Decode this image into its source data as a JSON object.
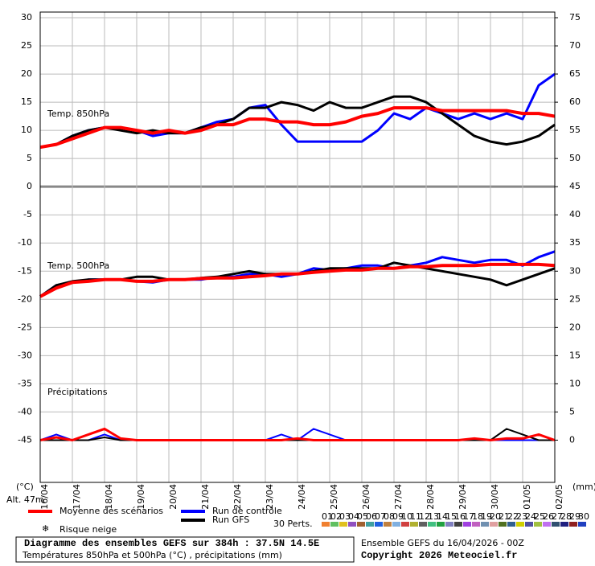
{
  "chart_data": {
    "type": "line",
    "title": "Diagramme des ensembles GEFS sur 384h : 37.5N 14.5E",
    "subtitle": "Températures 850hPa et 500hPa (°C) , précipitations (mm)",
    "source": "Ensemble GEFS du 16/04/2026 - 00Z",
    "copyright": "Copyright 2026 Meteociel.fr",
    "ylabel": "(°C)",
    "y2label": "(mm)",
    "panel_labels": [
      "Temp. 850hPa",
      "Temp. 500hPa",
      "Précipitations"
    ],
    "altitude": "Alt. 47m",
    "snow_label": "Risque neige",
    "categories": [
      "16/04",
      null,
      "17/04",
      null,
      "18/04",
      null,
      "19/04",
      null,
      "20/04",
      null,
      "21/04",
      null,
      "22/04",
      null,
      "23/04",
      null,
      "24/04",
      null,
      "25/04",
      null,
      "26/04",
      null,
      "27/04",
      null,
      "28/04",
      null,
      "29/04",
      null,
      "30/04",
      null,
      "01/05",
      null,
      "02/05"
    ],
    "ylim": [
      -52.5,
      31
    ],
    "yticks": [
      30,
      25,
      20,
      15,
      10,
      5,
      0,
      -5,
      -10,
      -15,
      -20,
      -25,
      -30,
      -35,
      -40,
      -45
    ],
    "y2lim": [
      -7.5,
      76
    ],
    "y2ticks": [
      75,
      70,
      65,
      60,
      55,
      50,
      45,
      40,
      35,
      30,
      25,
      20,
      15,
      10,
      5,
      0
    ],
    "grid": true,
    "series": [
      {
        "name": "Moyenne des scénarios",
        "color": "#ff0000",
        "values": [
          7,
          7.5,
          8.5,
          9.5,
          10.5,
          10.5,
          10,
          9.5,
          10,
          9.5,
          10,
          11,
          11,
          12,
          12,
          11.5,
          11.5,
          11,
          11,
          11.5,
          12.5,
          13,
          14,
          14,
          14,
          13.5,
          13.5,
          13.5,
          13.5,
          13.5,
          13,
          13,
          12.5
        ],
        "values_500": [
          -19.5,
          -18,
          -17,
          -16.8,
          -16.5,
          -16.5,
          -16.8,
          -16.8,
          -16.5,
          -16.5,
          -16.3,
          -16.2,
          -16.2,
          -16,
          -15.8,
          -15.5,
          -15.5,
          -15.2,
          -15,
          -14.8,
          -14.8,
          -14.5,
          -14.5,
          -14.2,
          -14.2,
          -14,
          -14,
          -14,
          -13.8,
          -13.8,
          -13.8,
          -13.8,
          -14
        ],
        "precip": [
          0,
          0.5,
          0,
          1,
          2,
          0.3,
          0,
          0,
          0,
          0,
          0,
          0,
          0,
          0,
          0,
          0,
          0.3,
          0,
          0,
          0,
          0,
          0,
          0,
          0,
          0,
          0,
          0,
          0.3,
          0,
          0.3,
          0.3,
          1,
          0
        ]
      },
      {
        "name": "Run de contrôle",
        "color": "#0000ff",
        "values": [
          7,
          7.5,
          9,
          10,
          10.5,
          10.5,
          10,
          9,
          9.5,
          9.5,
          10.5,
          11.5,
          12,
          14,
          14.5,
          11,
          8,
          8,
          8,
          8,
          8,
          10,
          13,
          12,
          14,
          13,
          12,
          13,
          12,
          13,
          12,
          18,
          20
        ],
        "values_500": [
          -19.5,
          -17.5,
          -17,
          -16.5,
          -16.5,
          -16.5,
          -16.8,
          -17,
          -16.5,
          -16.5,
          -16.5,
          -16,
          -16,
          -15.5,
          -15.5,
          -16,
          -15.5,
          -14.5,
          -14.8,
          -14.5,
          -14,
          -14,
          -14.5,
          -14,
          -13.5,
          -12.5,
          -13,
          -13.5,
          -13,
          -13,
          -14,
          -12.5,
          -11.5
        ],
        "precip": [
          0,
          1,
          0,
          0,
          1,
          0,
          0,
          0,
          0,
          0,
          0,
          0,
          0,
          0,
          0,
          1,
          0,
          2,
          1,
          0,
          0,
          0,
          0,
          0,
          0,
          0,
          0,
          0,
          0,
          0,
          0,
          0,
          0
        ]
      },
      {
        "name": "Run GFS",
        "color": "#000000",
        "values": [
          7,
          7.5,
          9,
          10,
          10.5,
          10,
          9.5,
          10,
          9.5,
          9.5,
          10.5,
          11,
          12,
          14,
          14,
          15,
          14.5,
          13.5,
          15,
          14,
          14,
          15,
          16,
          16,
          15,
          13,
          11,
          9,
          8,
          7.5,
          8,
          9,
          11
        ],
        "values_500": [
          -19.5,
          -17.5,
          -16.8,
          -16.5,
          -16.5,
          -16.5,
          -16,
          -16,
          -16.5,
          -16.5,
          -16.2,
          -16,
          -15.5,
          -15,
          -15.5,
          -15.5,
          -15.5,
          -15,
          -14.5,
          -14.5,
          -14.5,
          -14.5,
          -13.5,
          -14,
          -14.5,
          -15,
          -15.5,
          -16,
          -16.5,
          -17.5,
          -16.5,
          -15.5,
          -14.5
        ],
        "precip": [
          0,
          0,
          0,
          0,
          0.5,
          0,
          0,
          0,
          0,
          0,
          0,
          0,
          0,
          0,
          0,
          0,
          0,
          0,
          0,
          0,
          0,
          0,
          0,
          0,
          0,
          0,
          0,
          0,
          0,
          2,
          1,
          0,
          0
        ]
      }
    ],
    "perturbations": {
      "label": "30 Perts.",
      "names": [
        "01",
        "02",
        "03",
        "04",
        "05",
        "06",
        "07",
        "08",
        "09",
        "10",
        "11",
        "12",
        "13",
        "14",
        "15",
        "16",
        "17",
        "18",
        "19",
        "20",
        "21",
        "22",
        "23",
        "24",
        "25",
        "26",
        "27",
        "28",
        "29",
        "30"
      ],
      "colors": [
        "#f08030",
        "#60c060",
        "#e0c020",
        "#9050c0",
        "#a06030",
        "#40a0a0",
        "#2060e0",
        "#c08040",
        "#80b0e0",
        "#d04040",
        "#b0b030",
        "#606060",
        "#40c080",
        "#20a040",
        "#8080c0",
        "#404040",
        "#a040e0",
        "#c060c0",
        "#7090b0",
        "#e0a0a0",
        "#507020",
        "#306090",
        "#d0d000",
        "#5050a0",
        "#a0c040",
        "#c070f0",
        "#305070",
        "#202080",
        "#902020",
        "#2040c0"
      ]
    }
  }
}
